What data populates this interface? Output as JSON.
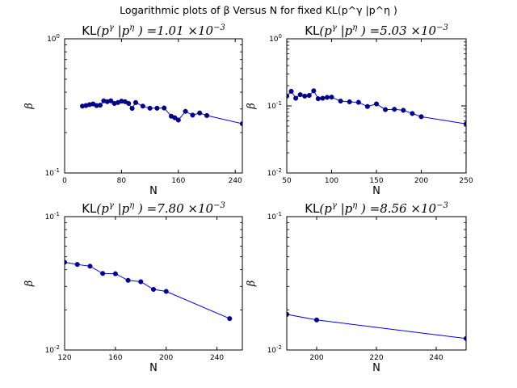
{
  "figure_title": "Logarithmic plots of β Versus N for fixed KL(p^γ |p^η )",
  "chart_data": [
    {
      "type": "line",
      "title": "KL(p^γ |p^η ) = 1.01 × 10^-3",
      "title_kl": "KL",
      "title_arg": "(p",
      "title_sup1": "γ",
      "title_mid": " |p",
      "title_sup2": "η",
      "title_end": " ) =1.01 ×10",
      "title_exp": "−3",
      "xlabel": "N",
      "ylabel": "β",
      "xscale": "linear",
      "yscale": "log",
      "xlim": [
        0,
        250
      ],
      "ylim": [
        0.1,
        1
      ],
      "xticks": [
        0,
        80,
        160,
        240
      ],
      "xtick_labels": [
        "0",
        "80",
        "160",
        "240"
      ],
      "ytick_labels": [
        {
          "value": 1,
          "base": "10",
          "exp": "0"
        },
        {
          "value": 0.1,
          "base": "10",
          "exp": "-1"
        }
      ],
      "x": [
        25,
        30,
        35,
        40,
        45,
        50,
        55,
        60,
        65,
        70,
        75,
        80,
        85,
        90,
        95,
        100,
        110,
        120,
        130,
        140,
        150,
        155,
        160,
        170,
        180,
        190,
        200,
        250
      ],
      "y": [
        0.315,
        0.318,
        0.323,
        0.327,
        0.318,
        0.32,
        0.345,
        0.34,
        0.345,
        0.33,
        0.335,
        0.343,
        0.34,
        0.33,
        0.303,
        0.335,
        0.315,
        0.304,
        0.304,
        0.305,
        0.265,
        0.258,
        0.248,
        0.288,
        0.27,
        0.28,
        0.268,
        0.233
      ]
    },
    {
      "type": "line",
      "title": "KL(p^γ |p^η ) = 5.03 × 10^-3",
      "title_kl": "KL",
      "title_arg": "(p",
      "title_sup1": "γ",
      "title_mid": " |p",
      "title_sup2": "η",
      "title_end": " ) =5.03 ×10",
      "title_exp": "−3",
      "xlabel": "N",
      "ylabel": "β",
      "xscale": "linear",
      "yscale": "log",
      "xlim": [
        50,
        250
      ],
      "ylim": [
        0.01,
        1
      ],
      "xticks": [
        50,
        100,
        150,
        200,
        250
      ],
      "xtick_labels": [
        "50",
        "100",
        "150",
        "200",
        "250"
      ],
      "ytick_labels": [
        {
          "value": 1,
          "base": "10",
          "exp": "0"
        },
        {
          "value": 0.1,
          "base": "10",
          "exp": "-1"
        },
        {
          "value": 0.01,
          "base": "10",
          "exp": "-2"
        }
      ],
      "x": [
        50,
        55,
        60,
        65,
        70,
        75,
        80,
        85,
        90,
        95,
        100,
        110,
        120,
        130,
        140,
        150,
        160,
        170,
        180,
        190,
        200,
        250
      ],
      "y": [
        0.14,
        0.165,
        0.13,
        0.147,
        0.14,
        0.143,
        0.168,
        0.128,
        0.13,
        0.134,
        0.135,
        0.118,
        0.115,
        0.113,
        0.098,
        0.107,
        0.088,
        0.089,
        0.086,
        0.077,
        0.069,
        0.054
      ]
    },
    {
      "type": "line",
      "title": "KL(p^γ |p^η ) = 7.80 × 10^-3",
      "title_kl": "KL",
      "title_arg": "(p",
      "title_sup1": "γ",
      "title_mid": " |p",
      "title_sup2": "η",
      "title_end": " ) =7.80 ×10",
      "title_exp": "−3",
      "xlabel": "N",
      "ylabel": "β",
      "xscale": "linear",
      "yscale": "log",
      "xlim": [
        120,
        260
      ],
      "ylim": [
        0.01,
        0.1
      ],
      "xticks": [
        120,
        160,
        200,
        240
      ],
      "xtick_labels": [
        "120",
        "160",
        "200",
        "240"
      ],
      "ytick_labels": [
        {
          "value": 0.1,
          "base": "10",
          "exp": "-1"
        },
        {
          "value": 0.01,
          "base": "10",
          "exp": "-2"
        }
      ],
      "x": [
        120,
        130,
        140,
        150,
        160,
        170,
        180,
        190,
        200,
        250
      ],
      "y": [
        0.0455,
        0.0438,
        0.0425,
        0.0375,
        0.0373,
        0.0333,
        0.0325,
        0.0285,
        0.0275,
        0.0172
      ]
    },
    {
      "type": "line",
      "title": "KL(p^γ |p^η ) = 8.56 × 10^-3",
      "title_kl": "KL",
      "title_arg": "(p",
      "title_sup1": "γ",
      "title_mid": " |p",
      "title_sup2": "η",
      "title_end": " ) =8.56 ×10",
      "title_exp": "−3",
      "xlabel": "N",
      "ylabel": "β",
      "xscale": "linear",
      "yscale": "log",
      "xlim": [
        190,
        250
      ],
      "ylim": [
        0.01,
        0.1
      ],
      "xticks": [
        200,
        220,
        240
      ],
      "xtick_labels": [
        "200",
        "220",
        "240"
      ],
      "ytick_labels": [
        {
          "value": 0.1,
          "base": "10",
          "exp": "-1"
        },
        {
          "value": 0.01,
          "base": "10",
          "exp": "-2"
        }
      ],
      "x": [
        190,
        200,
        250
      ],
      "y": [
        0.0185,
        0.0168,
        0.0122
      ]
    }
  ]
}
